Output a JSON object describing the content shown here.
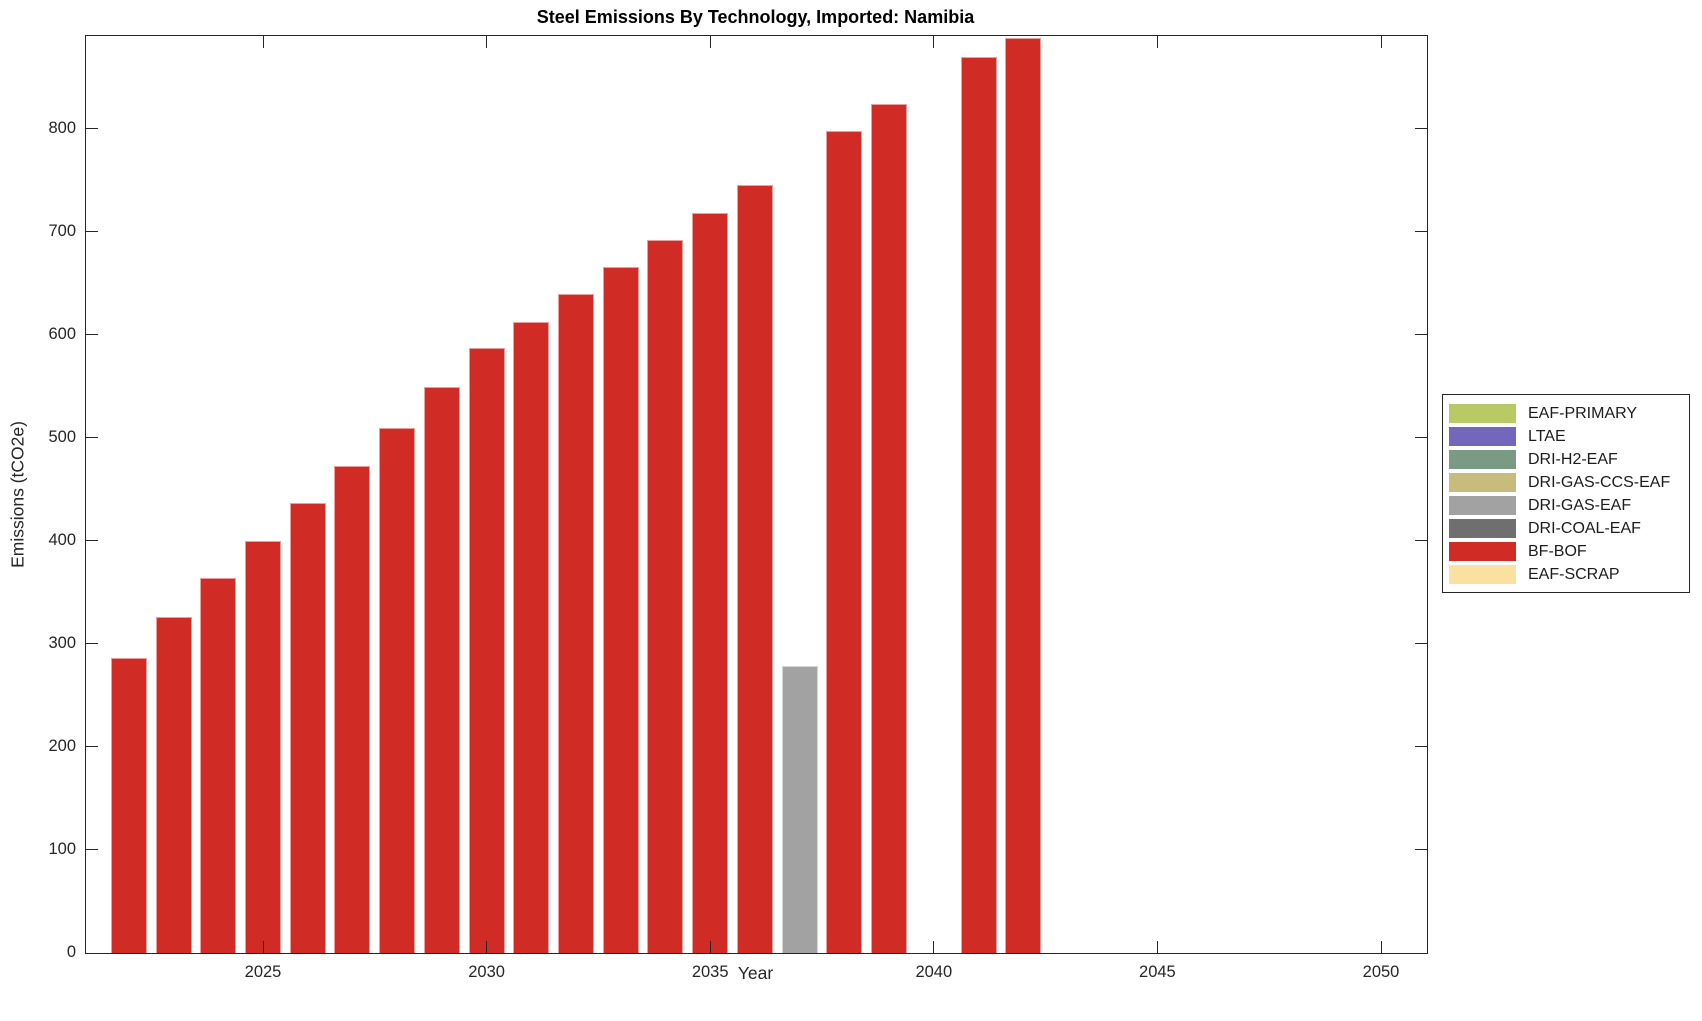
{
  "title": "Steel Emissions By Technology, Imported: Namibia",
  "chart_data": {
    "type": "bar",
    "title": "Steel Emissions By Technology, Imported: Namibia",
    "xlabel": "Year",
    "ylabel": "Emissions (tCO2e)",
    "xlim": [
      2021,
      2051
    ],
    "ylim": [
      0,
      890
    ],
    "x_ticks": [
      2025,
      2030,
      2035,
      2040,
      2045,
      2050
    ],
    "y_ticks": [
      0,
      100,
      200,
      300,
      400,
      500,
      600,
      700,
      800
    ],
    "grid": false,
    "legend_position": "outside-right",
    "bars": [
      {
        "year": 2022,
        "value": 286,
        "tech": "BF-BOF"
      },
      {
        "year": 2023,
        "value": 326,
        "tech": "BF-BOF"
      },
      {
        "year": 2024,
        "value": 364,
        "tech": "BF-BOF"
      },
      {
        "year": 2025,
        "value": 400,
        "tech": "BF-BOF"
      },
      {
        "year": 2026,
        "value": 437,
        "tech": "BF-BOF"
      },
      {
        "year": 2027,
        "value": 473,
        "tech": "BF-BOF"
      },
      {
        "year": 2028,
        "value": 510,
        "tech": "BF-BOF"
      },
      {
        "year": 2029,
        "value": 549,
        "tech": "BF-BOF"
      },
      {
        "year": 2030,
        "value": 587,
        "tech": "BF-BOF"
      },
      {
        "year": 2031,
        "value": 612,
        "tech": "BF-BOF"
      },
      {
        "year": 2032,
        "value": 640,
        "tech": "BF-BOF"
      },
      {
        "year": 2033,
        "value": 666,
        "tech": "BF-BOF"
      },
      {
        "year": 2034,
        "value": 692,
        "tech": "BF-BOF"
      },
      {
        "year": 2035,
        "value": 718,
        "tech": "BF-BOF"
      },
      {
        "year": 2036,
        "value": 745,
        "tech": "BF-BOF"
      },
      {
        "year": 2037,
        "value": 279,
        "tech": "DRI-GAS-EAF"
      },
      {
        "year": 2038,
        "value": 798,
        "tech": "BF-BOF"
      },
      {
        "year": 2039,
        "value": 824,
        "tech": "BF-BOF"
      },
      {
        "year": 2041,
        "value": 870,
        "tech": "BF-BOF"
      },
      {
        "year": 2042,
        "value": 888,
        "tech": "BF-BOF"
      }
    ],
    "legend": [
      {
        "label": "EAF-PRIMARY",
        "color": "#b9c963"
      },
      {
        "label": "LTAE",
        "color": "#7266bd"
      },
      {
        "label": "DRI-H2-EAF",
        "color": "#7a9a85"
      },
      {
        "label": "DRI-GAS-CCS-EAF",
        "color": "#c8bc7d"
      },
      {
        "label": "DRI-GAS-EAF",
        "color": "#a2a2a2"
      },
      {
        "label": "DRI-COAL-EAF",
        "color": "#6f6f6f"
      },
      {
        "label": "BF-BOF",
        "color": "#d12b25"
      },
      {
        "label": "EAF-SCRAP",
        "color": "#fbe1a1"
      }
    ]
  }
}
